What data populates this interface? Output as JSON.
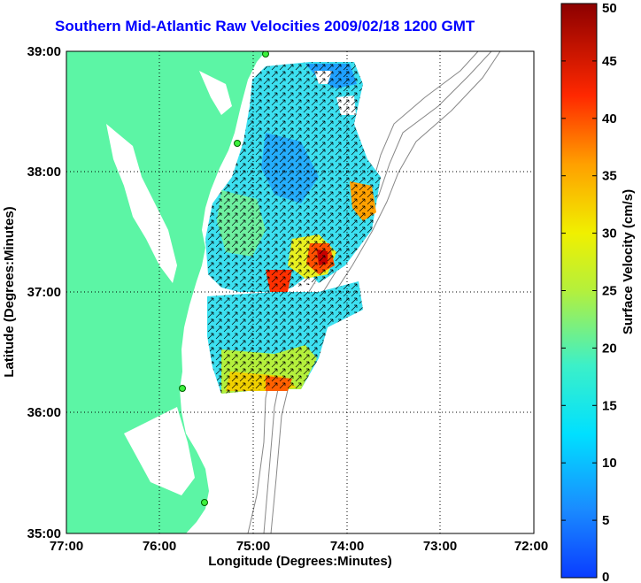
{
  "title": "Southern Mid-Atlantic Raw Velocities 2009/02/18 1200 GMT",
  "chart_data": {
    "type": "heatmap",
    "title": "Southern Mid-Atlantic Raw Velocities 2009/02/18 1200 GMT",
    "xlabel": "Longitude (Degrees:Minutes)",
    "ylabel": "Latitude (Degrees:Minutes)",
    "x_ticks": [
      "77:00",
      "76:00",
      "75:00",
      "74:00",
      "73:00",
      "72:00"
    ],
    "y_ticks": [
      "39:00",
      "38:00",
      "37:00",
      "36:00",
      "35:00"
    ],
    "xlim": [
      -77,
      -72
    ],
    "ylim": [
      35,
      39
    ],
    "colorbar": {
      "label": "Surface Velocity (cm/s)",
      "range": [
        0,
        50
      ],
      "ticks": [
        "0",
        "5",
        "10",
        "15",
        "20",
        "25",
        "30",
        "35",
        "40",
        "45",
        "50"
      ]
    },
    "grid": "dotted"
  },
  "colors": {
    "title": "#0000ff",
    "land": "#5cf5a5",
    "contour": "#888888"
  }
}
